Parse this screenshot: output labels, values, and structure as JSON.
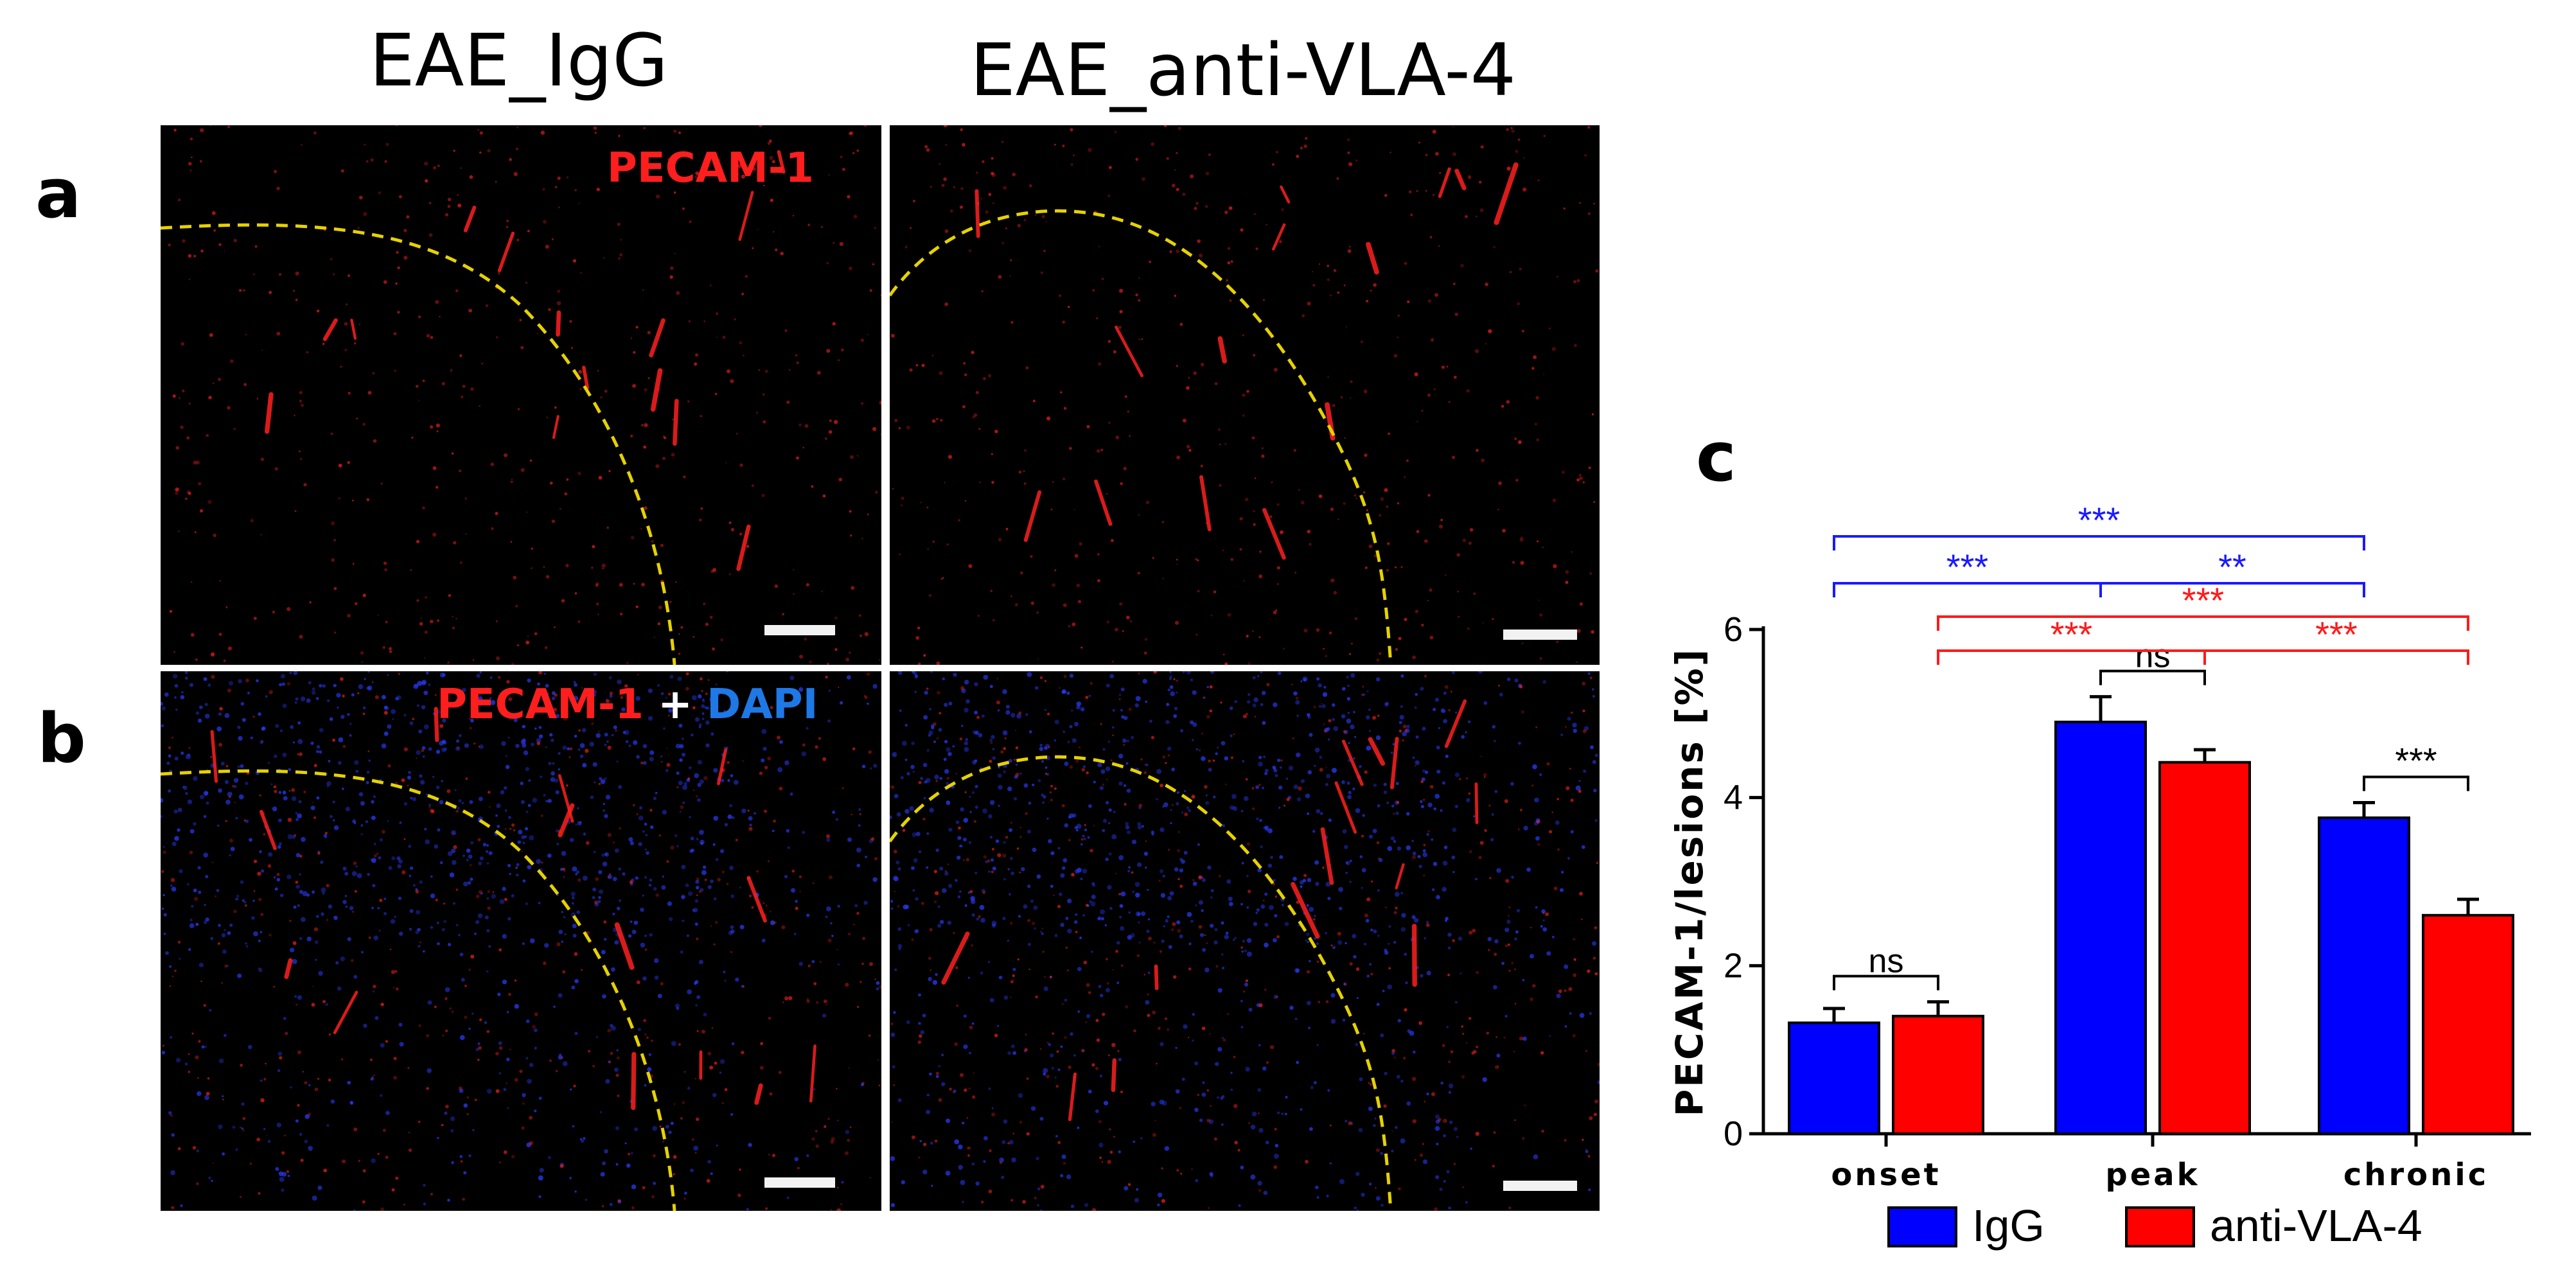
{
  "columns": {
    "left_title": "EAE_IgG",
    "right_title": "EAE_anti-VLA-4"
  },
  "panels": {
    "a": "a",
    "b": "b",
    "c": "c"
  },
  "overlays": {
    "pecam": "PECAM-1",
    "plus": " + ",
    "dapi": "DAPI"
  },
  "colors": {
    "igg": "#0000ff",
    "anti_vla4": "#ff0000",
    "dashed_boundary": "#e6d200",
    "red_stain": "#ff2020",
    "blue_stain": "#2a3cff"
  },
  "chart_data": {
    "type": "bar",
    "categories": [
      "onset",
      "peak",
      "chronic"
    ],
    "series": [
      {
        "name": "IgG",
        "values": [
          1.32,
          4.9,
          3.76
        ],
        "errors": [
          0.17,
          0.3,
          0.18
        ]
      },
      {
        "name": "anti-VLA-4",
        "values": [
          1.4,
          4.42,
          2.6
        ],
        "errors": [
          0.17,
          0.15,
          0.19
        ]
      }
    ],
    "ylabel": "PECAM-1/lesions [%]",
    "ylim": [
      0,
      6
    ],
    "yticks": [
      "0",
      "2",
      "4",
      "6"
    ],
    "legend_placement": "bottom",
    "annotations": [
      {
        "label": "ns",
        "from": "onset.IgG",
        "to": "onset.anti-VLA-4",
        "color": "black"
      },
      {
        "label": "ns",
        "from": "peak.IgG",
        "to": "peak.anti-VLA-4",
        "color": "black"
      },
      {
        "label": "***",
        "from": "chronic.IgG",
        "to": "chronic.anti-VLA-4",
        "color": "black"
      },
      {
        "label": "***",
        "from": "onset.IgG",
        "to": "peak.IgG",
        "color": "blue"
      },
      {
        "label": "**",
        "from": "peak.IgG",
        "to": "chronic.IgG",
        "color": "blue"
      },
      {
        "label": "***",
        "from": "onset.IgG",
        "to": "chronic.IgG",
        "color": "blue"
      },
      {
        "label": "***",
        "from": "onset.anti-VLA-4",
        "to": "peak.anti-VLA-4",
        "color": "red"
      },
      {
        "label": "***",
        "from": "peak.anti-VLA-4",
        "to": "chronic.anti-VLA-4",
        "color": "red"
      },
      {
        "label": "***",
        "from": "onset.anti-VLA-4",
        "to": "chronic.anti-VLA-4",
        "color": "red"
      }
    ]
  }
}
